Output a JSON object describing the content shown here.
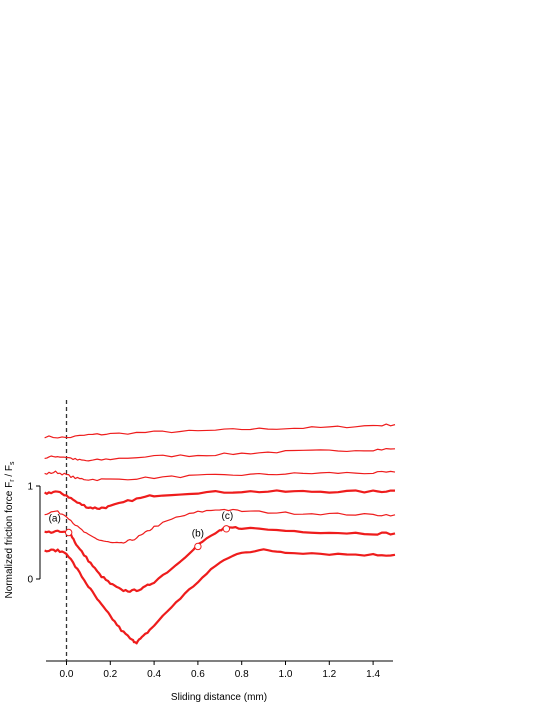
{
  "chart_data": {
    "type": "line",
    "xlabel": "Sliding distance (mm)",
    "ylabel_main": "Normalized friction force F",
    "ylabel_sub1": "r",
    "ylabel_div": " / F",
    "ylabel_sub2": "s",
    "xlim": [
      -0.1,
      1.5
    ],
    "ylim": [
      -0.9,
      1.8
    ],
    "x_ticks": [
      {
        "value": 0.0,
        "label": "0.0"
      },
      {
        "value": 0.2,
        "label": "0.2"
      },
      {
        "value": 0.4,
        "label": "0.4"
      },
      {
        "value": 0.6,
        "label": "0.6"
      },
      {
        "value": 0.8,
        "label": "0.8"
      },
      {
        "value": 1.0,
        "label": "1.0"
      },
      {
        "value": 1.2,
        "label": "1.2"
      },
      {
        "value": 1.4,
        "label": "1.4"
      }
    ],
    "y_ticks": [
      {
        "value": 0,
        "label": "0"
      },
      {
        "value": 1,
        "label": "1"
      }
    ],
    "reference_line_x": 0.0,
    "line_color": "#ee1c1c",
    "series": [
      {
        "values": [
          [
            -0.1,
            1.53
          ],
          [
            0.0,
            1.52
          ],
          [
            0.1,
            1.55
          ],
          [
            0.2,
            1.56
          ],
          [
            0.4,
            1.58
          ],
          [
            0.6,
            1.59
          ],
          [
            0.8,
            1.61
          ],
          [
            1.0,
            1.62
          ],
          [
            1.2,
            1.63
          ],
          [
            1.4,
            1.65
          ],
          [
            1.5,
            1.66
          ]
        ],
        "bold": false
      },
      {
        "values": [
          [
            -0.1,
            1.3
          ],
          [
            -0.05,
            1.32
          ],
          [
            0.0,
            1.31
          ],
          [
            0.05,
            1.28
          ],
          [
            0.1,
            1.27
          ],
          [
            0.2,
            1.29
          ],
          [
            0.4,
            1.32
          ],
          [
            0.6,
            1.33
          ],
          [
            0.8,
            1.35
          ],
          [
            1.0,
            1.37
          ],
          [
            1.2,
            1.38
          ],
          [
            1.4,
            1.39
          ],
          [
            1.5,
            1.4
          ]
        ],
        "bold": false
      },
      {
        "values": [
          [
            -0.1,
            1.13
          ],
          [
            -0.05,
            1.15
          ],
          [
            0.0,
            1.12
          ],
          [
            0.05,
            1.08
          ],
          [
            0.1,
            1.07
          ],
          [
            0.2,
            1.07
          ],
          [
            0.4,
            1.09
          ],
          [
            0.6,
            1.11
          ],
          [
            0.8,
            1.12
          ],
          [
            1.0,
            1.13
          ],
          [
            1.2,
            1.14
          ],
          [
            1.4,
            1.14
          ],
          [
            1.5,
            1.15
          ]
        ],
        "bold": false
      },
      {
        "values": [
          [
            -0.1,
            0.92
          ],
          [
            -0.05,
            0.94
          ],
          [
            0.0,
            0.9
          ],
          [
            0.05,
            0.82
          ],
          [
            0.1,
            0.77
          ],
          [
            0.15,
            0.76
          ],
          [
            0.2,
            0.78
          ],
          [
            0.3,
            0.85
          ],
          [
            0.4,
            0.9
          ],
          [
            0.6,
            0.93
          ],
          [
            0.8,
            0.94
          ],
          [
            1.0,
            0.94
          ],
          [
            1.2,
            0.94
          ],
          [
            1.4,
            0.94
          ],
          [
            1.5,
            0.95
          ]
        ],
        "bold": true
      },
      {
        "values": [
          [
            -0.1,
            0.7
          ],
          [
            -0.05,
            0.73
          ],
          [
            0.0,
            0.68
          ],
          [
            0.05,
            0.56
          ],
          [
            0.1,
            0.47
          ],
          [
            0.15,
            0.42
          ],
          [
            0.2,
            0.39
          ],
          [
            0.25,
            0.38
          ],
          [
            0.3,
            0.42
          ],
          [
            0.35,
            0.48
          ],
          [
            0.4,
            0.56
          ],
          [
            0.5,
            0.66
          ],
          [
            0.6,
            0.72
          ],
          [
            0.7,
            0.75
          ],
          [
            0.8,
            0.73
          ],
          [
            1.0,
            0.71
          ],
          [
            1.2,
            0.7
          ],
          [
            1.4,
            0.69
          ],
          [
            1.5,
            0.69
          ]
        ],
        "bold": false
      },
      {
        "values": [
          [
            -0.1,
            0.5
          ],
          [
            -0.05,
            0.51
          ],
          [
            0.0,
            0.5
          ],
          [
            0.02,
            0.48
          ],
          [
            0.05,
            0.35
          ],
          [
            0.1,
            0.2
          ],
          [
            0.15,
            0.05
          ],
          [
            0.2,
            -0.05
          ],
          [
            0.25,
            -0.12
          ],
          [
            0.3,
            -0.13
          ],
          [
            0.35,
            -0.1
          ],
          [
            0.4,
            -0.03
          ],
          [
            0.5,
            0.15
          ],
          [
            0.6,
            0.37
          ],
          [
            0.7,
            0.52
          ],
          [
            0.73,
            0.55
          ],
          [
            0.8,
            0.55
          ],
          [
            1.0,
            0.52
          ],
          [
            1.2,
            0.5
          ],
          [
            1.4,
            0.49
          ],
          [
            1.5,
            0.49
          ]
        ],
        "bold": true
      },
      {
        "values": [
          [
            -0.1,
            0.3
          ],
          [
            -0.05,
            0.31
          ],
          [
            0.0,
            0.28
          ],
          [
            0.05,
            0.1
          ],
          [
            0.1,
            -0.08
          ],
          [
            0.15,
            -0.25
          ],
          [
            0.2,
            -0.4
          ],
          [
            0.25,
            -0.55
          ],
          [
            0.3,
            -0.66
          ],
          [
            0.32,
            -0.68
          ],
          [
            0.35,
            -0.62
          ],
          [
            0.4,
            -0.5
          ],
          [
            0.5,
            -0.25
          ],
          [
            0.6,
            -0.03
          ],
          [
            0.7,
            0.18
          ],
          [
            0.8,
            0.29
          ],
          [
            0.9,
            0.31
          ],
          [
            1.0,
            0.29
          ],
          [
            1.2,
            0.27
          ],
          [
            1.4,
            0.26
          ],
          [
            1.5,
            0.26
          ]
        ],
        "bold": true
      }
    ],
    "annotations": [
      {
        "label": "(a)",
        "x": 0.01,
        "y": 0.5
      },
      {
        "label": "(b)",
        "x": 0.6,
        "y": 0.35
      },
      {
        "label": "(c)",
        "x": 0.73,
        "y": 0.54
      }
    ]
  }
}
